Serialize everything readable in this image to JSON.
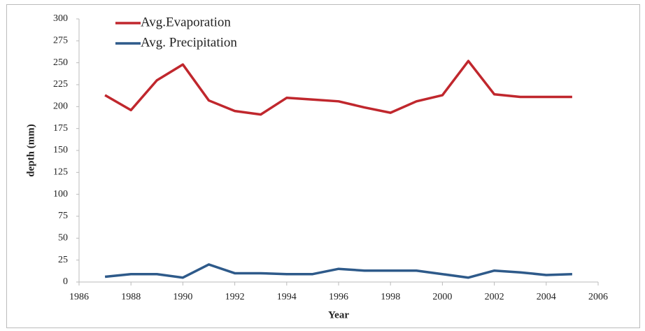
{
  "chart_data": {
    "type": "line",
    "x": [
      1987,
      1988,
      1989,
      1990,
      1991,
      1992,
      1993,
      1994,
      1995,
      1996,
      1997,
      1998,
      1999,
      2000,
      2001,
      2002,
      2003,
      2004,
      2005
    ],
    "series": [
      {
        "name": "Avg.Evaporation",
        "color": "#c0272d",
        "values": [
          213,
          196,
          230,
          248,
          207,
          195,
          191,
          210,
          208,
          206,
          199,
          193,
          206,
          213,
          252,
          214,
          211,
          211,
          211
        ]
      },
      {
        "name": "Avg. Precipitation",
        "color": "#2e5a8a",
        "values": [
          6,
          9,
          9,
          5,
          20,
          10,
          10,
          9,
          9,
          15,
          13,
          13,
          13,
          9,
          5,
          13,
          11,
          8,
          9
        ]
      }
    ],
    "xlabel": "Year",
    "ylabel": "depth (mm)",
    "xlim": [
      1986,
      2006
    ],
    "xticks": [
      1986,
      1988,
      1990,
      1992,
      1994,
      1996,
      1998,
      2000,
      2002,
      2004,
      2006
    ],
    "ylim": [
      0,
      300
    ],
    "yticks": [
      0,
      25,
      50,
      75,
      100,
      125,
      150,
      175,
      200,
      225,
      250,
      275,
      300
    ],
    "grid": false,
    "legend": "top-left"
  }
}
